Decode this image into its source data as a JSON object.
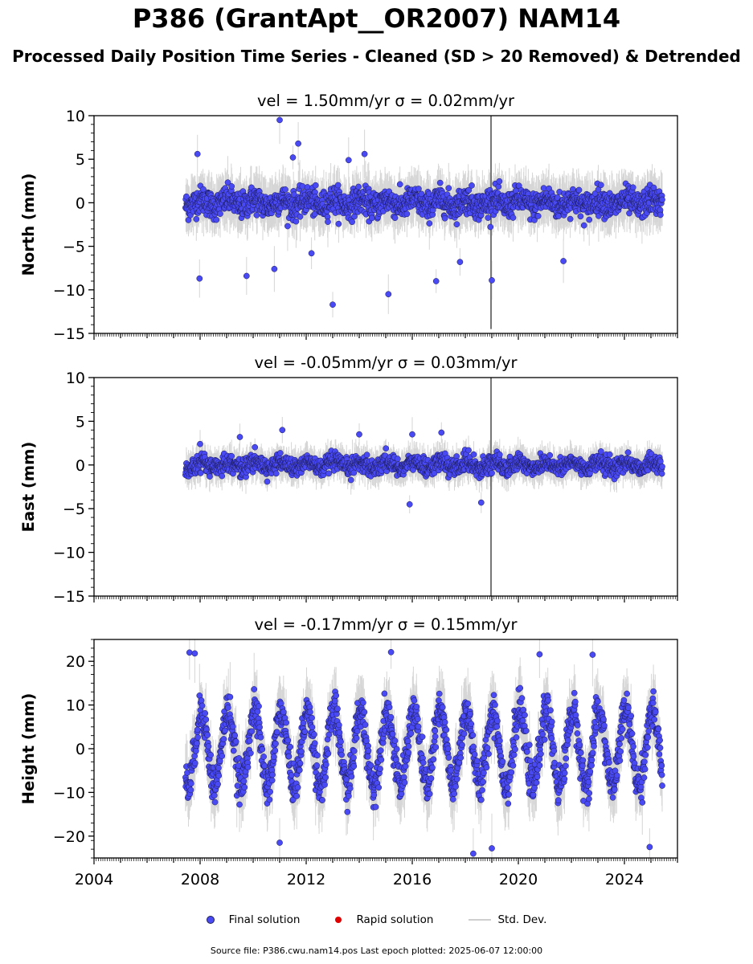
{
  "title": "P386 (GrantApt__OR2007) NAM14",
  "subtitle": "Processed Daily Position Time Series - Cleaned (SD > 20 Removed) & Detrended",
  "legend": {
    "final": "Final solution",
    "rapid": "Rapid solution",
    "std": "Std. Dev."
  },
  "footer": "Source file: P386.cwu.nam14.pos  Last epoch plotted: 2025-06-07 12:00:00",
  "colors": {
    "final": "#4a4af5",
    "final_edge": "#1a1a55",
    "rapid": "#e00000",
    "std": "#8a8a8a"
  },
  "chart_data": [
    {
      "type": "scatter",
      "panel": "north",
      "title": "vel = 1.50mm/yr   σ = 0.02mm/yr",
      "ylabel": "North (mm)",
      "xlim": [
        2004,
        2026
      ],
      "ylim": [
        -15,
        10
      ],
      "yticks": [
        -15,
        -10,
        -5,
        0,
        5,
        10
      ],
      "xticks": [],
      "data_start": 2007.45,
      "data_end": 2025.43,
      "scatter_sd": 1.4,
      "seasonal_amplitude": 0.4,
      "outliers": [
        [
          2011.0,
          9.5
        ],
        [
          2011.7,
          6.8
        ],
        [
          2007.9,
          5.6
        ],
        [
          2014.2,
          5.6
        ],
        [
          2013.6,
          4.9
        ],
        [
          2011.5,
          5.2
        ],
        [
          2007.98,
          -8.7
        ],
        [
          2009.75,
          -8.4
        ],
        [
          2013.0,
          -11.7
        ],
        [
          2015.1,
          -10.5
        ],
        [
          2016.9,
          -9.0
        ],
        [
          2019.0,
          -8.9
        ],
        [
          2021.7,
          -6.7
        ],
        [
          2012.2,
          -5.8
        ],
        [
          2010.8,
          -7.6
        ],
        [
          2017.8,
          -6.8
        ]
      ],
      "spike": {
        "x": 2018.97,
        "y_min": -14.5,
        "y_max": 10
      }
    },
    {
      "type": "scatter",
      "panel": "east",
      "title": "vel = -0.05mm/yr   σ = 0.03mm/yr",
      "ylabel": "East (mm)",
      "xlim": [
        2004,
        2026
      ],
      "ylim": [
        -15,
        10
      ],
      "yticks": [
        -15,
        -10,
        -5,
        0,
        5,
        10
      ],
      "xticks": [],
      "data_start": 2007.45,
      "data_end": 2025.43,
      "scatter_sd": 0.9,
      "seasonal_amplitude": 0.35,
      "outliers": [
        [
          2011.1,
          4.0
        ],
        [
          2014.0,
          3.5
        ],
        [
          2016.0,
          3.5
        ],
        [
          2017.1,
          3.7
        ],
        [
          2008.0,
          2.4
        ],
        [
          2009.5,
          3.2
        ],
        [
          2015.9,
          -4.5
        ],
        [
          2018.6,
          -4.3
        ]
      ],
      "spike": {
        "x": 2018.97,
        "y_min": -15,
        "y_max": 10
      }
    },
    {
      "type": "scatter",
      "panel": "height",
      "title": "vel = -0.17mm/yr   σ = 0.15mm/yr",
      "ylabel": "Height (mm)",
      "xlim": [
        2004,
        2026
      ],
      "ylim": [
        -25,
        25
      ],
      "yticks": [
        -20,
        -10,
        0,
        10,
        20
      ],
      "xticks": [
        "2004",
        "2008",
        "2012",
        "2016",
        "2020",
        "2024"
      ],
      "data_start": 2007.45,
      "data_end": 2025.43,
      "scatter_sd": 3.8,
      "seasonal_amplitude": 8.5,
      "outliers": [
        [
          2007.6,
          22.0
        ],
        [
          2007.8,
          21.8
        ],
        [
          2015.2,
          22.1
        ],
        [
          2020.8,
          21.6
        ],
        [
          2022.8,
          21.5
        ],
        [
          2018.3,
          -24.0
        ],
        [
          2011.0,
          -21.5
        ],
        [
          2019.0,
          -22.8
        ],
        [
          2024.95,
          -22.5
        ]
      ],
      "spike": null
    }
  ]
}
